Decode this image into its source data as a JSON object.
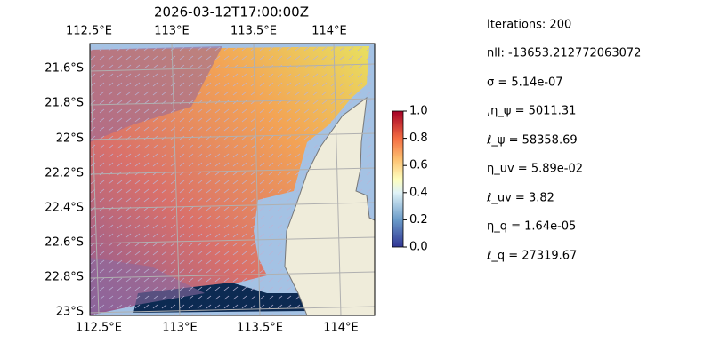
{
  "title": "2026-03-12T17:00:00Z",
  "map": {
    "lon_labels": [
      "112.5°E",
      "113°E",
      "113.5°E",
      "114°E"
    ],
    "lat_labels": [
      "21.6°S",
      "21.8°S",
      "22°S",
      "22.2°S",
      "22.4°S",
      "22.6°S",
      "22.8°S",
      "23°S"
    ]
  },
  "colorbar": {
    "lim": [
      0,
      1
    ],
    "ticks": [
      {
        "value": 0,
        "label": "0.0"
      },
      {
        "value": 0.2,
        "label": "0.2"
      },
      {
        "value": 0.4,
        "label": "0.4"
      },
      {
        "value": 0.6,
        "label": "0.6"
      },
      {
        "value": 0.8,
        "label": "0.8"
      },
      {
        "value": 1,
        "label": "1.0"
      }
    ]
  },
  "params": [
    "Iterations: 200",
    "nll: -13653.212772063072",
    "σ = 5.14e-07",
    ",η_ψ = 5011.31",
    "ℓ_ψ = 58358.69",
    "η_uv = 5.89e-02",
    "ℓ_uv = 3.82",
    "η_q = 1.64e-05",
    "ℓ_q = 27319.67"
  ]
}
